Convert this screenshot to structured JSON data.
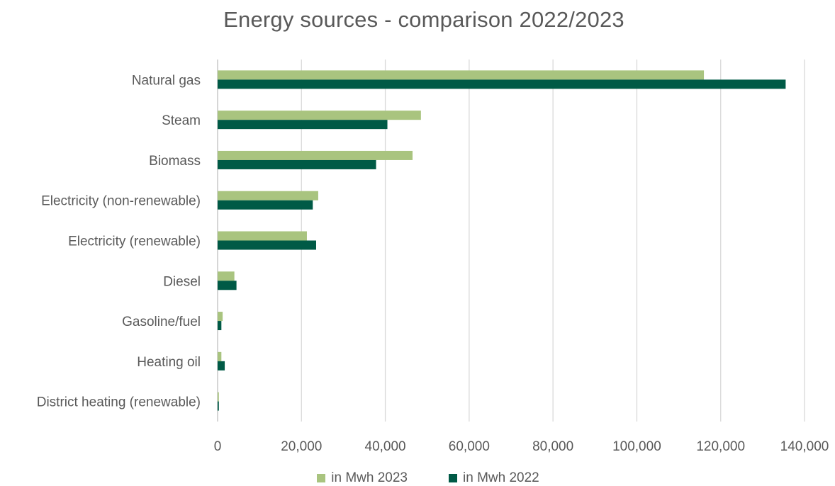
{
  "chart_data": {
    "type": "bar",
    "orientation": "horizontal",
    "title": "Energy sources - comparison 2022/2023",
    "xlabel": "",
    "ylabel": "",
    "categories": [
      "Natural gas",
      "Steam",
      "Biomass",
      "Electricity (non-renewable)",
      "Electricity (renewable)",
      "Diesel",
      "Gasoline/fuel",
      "Heating oil",
      "District heating (renewable)"
    ],
    "series": [
      {
        "name": "in Mwh 2023",
        "color": "#a9c47f",
        "values": [
          116000,
          48500,
          46500,
          24000,
          21300,
          4000,
          1200,
          900,
          300
        ]
      },
      {
        "name": "in Mwh 2022",
        "color": "#005a46",
        "values": [
          135500,
          40500,
          37800,
          22700,
          23500,
          4500,
          900,
          1700,
          300
        ]
      }
    ],
    "xlim": [
      0,
      140000
    ],
    "xticks": [
      0,
      20000,
      40000,
      60000,
      80000,
      100000,
      120000,
      140000
    ],
    "xtick_labels": [
      "0",
      "20,000",
      "40,000",
      "60,000",
      "80,000",
      "100,000",
      "120,000",
      "140,000"
    ],
    "grid": true,
    "legend_position": "bottom"
  }
}
